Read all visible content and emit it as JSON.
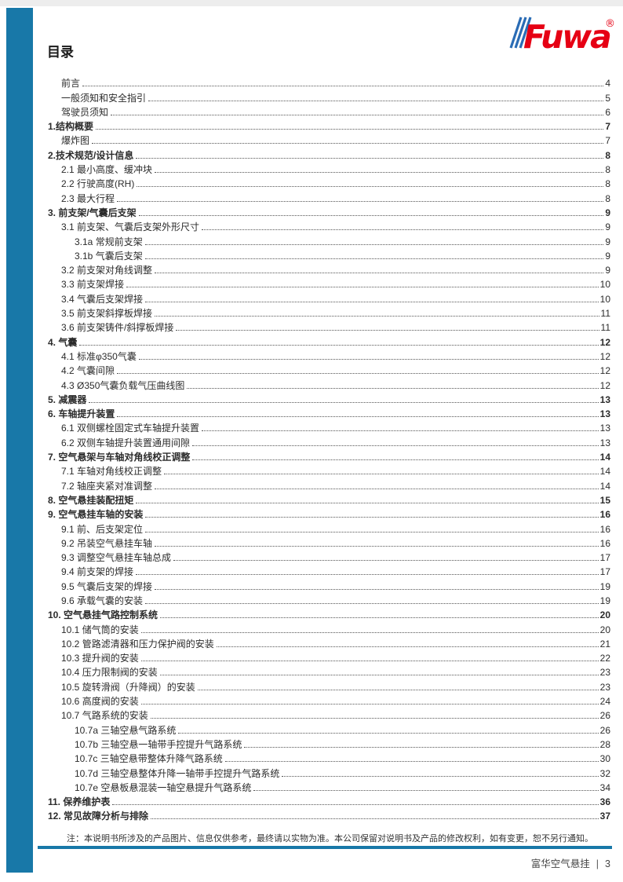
{
  "page": {
    "title": "目录",
    "logo": {
      "text": "Fuwa",
      "registered": "®"
    },
    "note": "注：本说明书所涉及的产品图片、信息仅供参考，最终请以实物为准。本公司保留对说明书及产品的修改权利，如有变更，恕不另行通知。",
    "footer": {
      "brand": "富华空气悬挂",
      "separator": "|",
      "page_number": "3"
    },
    "colors": {
      "accent_blue": "#1878a8",
      "logo_red": "#e60014",
      "logo_stripe_blue": "#2a6cb5"
    }
  },
  "toc": {
    "entries": [
      {
        "label": "前言",
        "page": "4",
        "level": 1,
        "bold": false
      },
      {
        "label": "一般须知和安全指引",
        "page": "5",
        "level": 1,
        "bold": false
      },
      {
        "label": "驾驶员须知",
        "page": "6",
        "level": 1,
        "bold": false
      },
      {
        "label": "1.结构概要",
        "page": "7",
        "level": 0,
        "bold": true
      },
      {
        "label": "爆炸图",
        "page": "7",
        "level": 1,
        "bold": false
      },
      {
        "label": "2.技术规范/设计信息",
        "page": "8",
        "level": 0,
        "bold": true
      },
      {
        "label": "2.1 最小高度、缓冲块",
        "page": "8",
        "level": 1,
        "bold": false
      },
      {
        "label": "2.2 行驶高度(RH)",
        "page": "8",
        "level": 1,
        "bold": false
      },
      {
        "label": "2.3 最大行程",
        "page": "8",
        "level": 1,
        "bold": false
      },
      {
        "label": "3. 前支架/气囊后支架",
        "page": "9",
        "level": 0,
        "bold": true
      },
      {
        "label": "3.1 前支架、气囊后支架外形尺寸",
        "page": "9",
        "level": 1,
        "bold": false
      },
      {
        "label": "3.1a 常规前支架",
        "page": "9",
        "level": 2,
        "bold": false
      },
      {
        "label": "3.1b 气囊后支架",
        "page": "9",
        "level": 2,
        "bold": false
      },
      {
        "label": "3.2 前支架对角线调整",
        "page": "9",
        "level": 1,
        "bold": false
      },
      {
        "label": "3.3 前支架焊接",
        "page": "10",
        "level": 1,
        "bold": false
      },
      {
        "label": "3.4 气囊后支架焊接",
        "page": "10",
        "level": 1,
        "bold": false
      },
      {
        "label": "3.5 前支架斜撑板焊接",
        "page": "11",
        "level": 1,
        "bold": false
      },
      {
        "label": "3.6 前支架铸件/斜撑板焊接",
        "page": "11",
        "level": 1,
        "bold": false
      },
      {
        "label": "4. 气囊",
        "page": "12",
        "level": 0,
        "bold": true
      },
      {
        "label": "4.1 标准φ350气囊",
        "page": "12",
        "level": 1,
        "bold": false
      },
      {
        "label": "4.2 气囊间隙",
        "page": "12",
        "level": 1,
        "bold": false
      },
      {
        "label": "4.3 Ø350气囊负载气压曲线图",
        "page": "12",
        "level": 1,
        "bold": false
      },
      {
        "label": "5. 减震器",
        "page": "13",
        "level": 0,
        "bold": true
      },
      {
        "label": "6. 车轴提升装置",
        "page": "13",
        "level": 0,
        "bold": true
      },
      {
        "label": "6.1 双侧螺栓固定式车轴提升装置",
        "page": "13",
        "level": 1,
        "bold": false
      },
      {
        "label": "6.2 双侧车轴提升装置通用间隙",
        "page": "13",
        "level": 1,
        "bold": false
      },
      {
        "label": "7. 空气悬架与车轴对角线校正调整",
        "page": "14",
        "level": 0,
        "bold": true
      },
      {
        "label": "7.1 车轴对角线校正调整",
        "page": "14",
        "level": 1,
        "bold": false
      },
      {
        "label": "7.2 轴座夹紧对准调整",
        "page": "14",
        "level": 1,
        "bold": false
      },
      {
        "label": "8. 空气悬挂装配扭矩",
        "page": "15",
        "level": 0,
        "bold": true
      },
      {
        "label": "9. 空气悬挂车轴的安装",
        "page": "16",
        "level": 0,
        "bold": true
      },
      {
        "label": "9.1 前、后支架定位",
        "page": "16",
        "level": 1,
        "bold": false
      },
      {
        "label": "9.2 吊装空气悬挂车轴",
        "page": "16",
        "level": 1,
        "bold": false
      },
      {
        "label": "9.3 调整空气悬挂车轴总成",
        "page": "17",
        "level": 1,
        "bold": false
      },
      {
        "label": "9.4 前支架的焊接",
        "page": "17",
        "level": 1,
        "bold": false
      },
      {
        "label": "9.5 气囊后支架的焊接",
        "page": "19",
        "level": 1,
        "bold": false
      },
      {
        "label": "9.6 承载气囊的安装",
        "page": "19",
        "level": 1,
        "bold": false
      },
      {
        "label": "10. 空气悬挂气路控制系统",
        "page": "20",
        "level": 0,
        "bold": true
      },
      {
        "label": "10.1 储气筒的安装",
        "page": "20",
        "level": 1,
        "bold": false
      },
      {
        "label": "10.2 管路滤清器和压力保护阀的安装",
        "page": "21",
        "level": 1,
        "bold": false
      },
      {
        "label": "10.3 提升阀的安装",
        "page": "22",
        "level": 1,
        "bold": false
      },
      {
        "label": "10.4 压力限制阀的安装",
        "page": "23",
        "level": 1,
        "bold": false
      },
      {
        "label": "10.5 旋转滑阀（升降阀）的安装",
        "page": "23",
        "level": 1,
        "bold": false
      },
      {
        "label": "10.6 高度阀的安装",
        "page": "24",
        "level": 1,
        "bold": false
      },
      {
        "label": "10.7 气路系统的安装",
        "page": "26",
        "level": 1,
        "bold": false
      },
      {
        "label": "10.7a 三轴空悬气路系统",
        "page": "26",
        "level": 2,
        "bold": false
      },
      {
        "label": "10.7b 三轴空悬一轴带手控提升气路系统",
        "page": "28",
        "level": 2,
        "bold": false
      },
      {
        "label": "10.7c 三轴空悬带整体升降气路系统",
        "page": "30",
        "level": 2,
        "bold": false
      },
      {
        "label": "10.7d 三轴空悬整体升降一轴带手控提升气路系统",
        "page": "32",
        "level": 2,
        "bold": false
      },
      {
        "label": "10.7e 空悬板悬混装一轴空悬提升气路系统",
        "page": "34",
        "level": 2,
        "bold": false
      },
      {
        "label": "11. 保养维护表",
        "page": "36",
        "level": 0,
        "bold": true
      },
      {
        "label": "12. 常见故障分析与排除",
        "page": "37",
        "level": 0,
        "bold": true
      }
    ]
  }
}
